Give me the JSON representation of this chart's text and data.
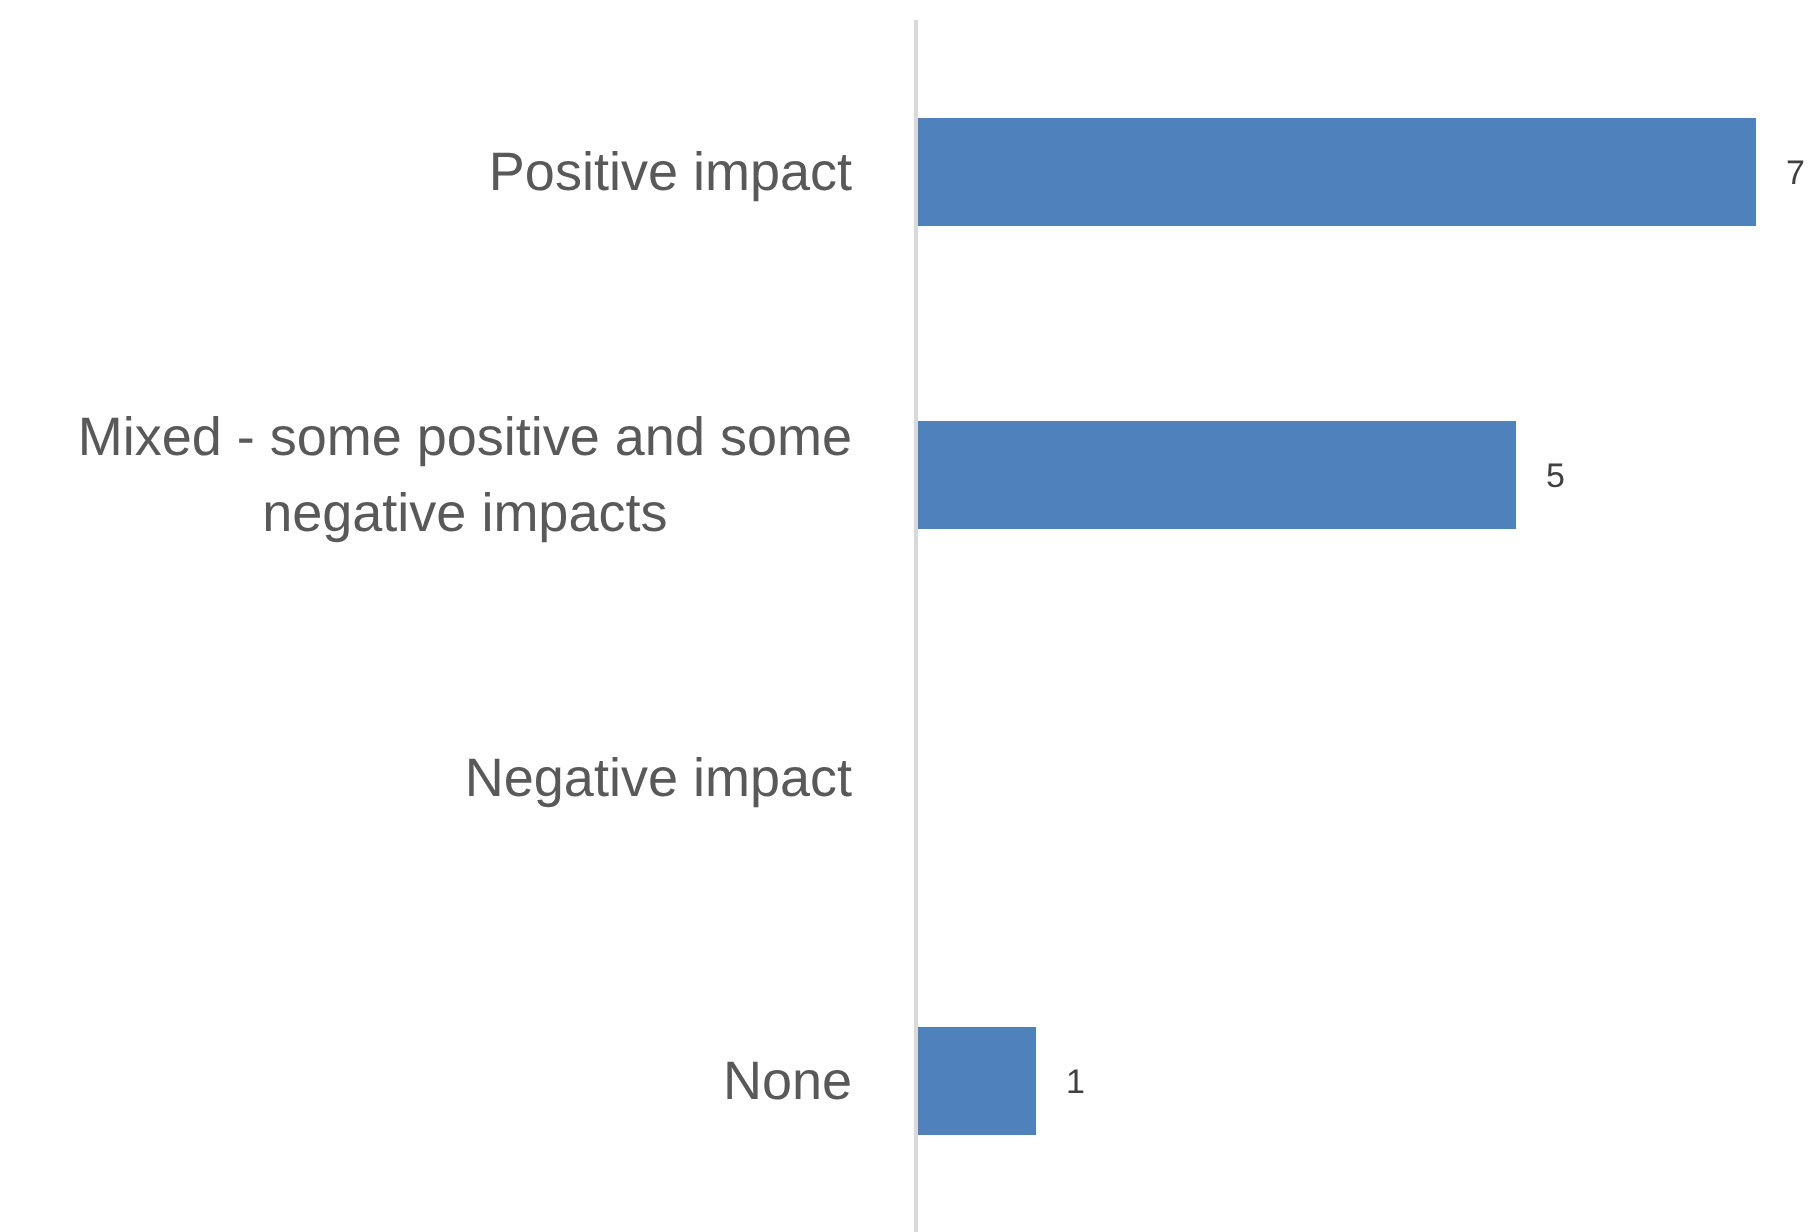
{
  "chart_data": {
    "type": "bar",
    "orientation": "horizontal",
    "categories": [
      "Positive impact",
      "Mixed - some positive and some negative impacts",
      "Negative impact",
      "None"
    ],
    "values": [
      7,
      5,
      0,
      1
    ],
    "color": "#4f81bd",
    "value_labels": [
      "7",
      "5",
      null,
      "1"
    ]
  }
}
